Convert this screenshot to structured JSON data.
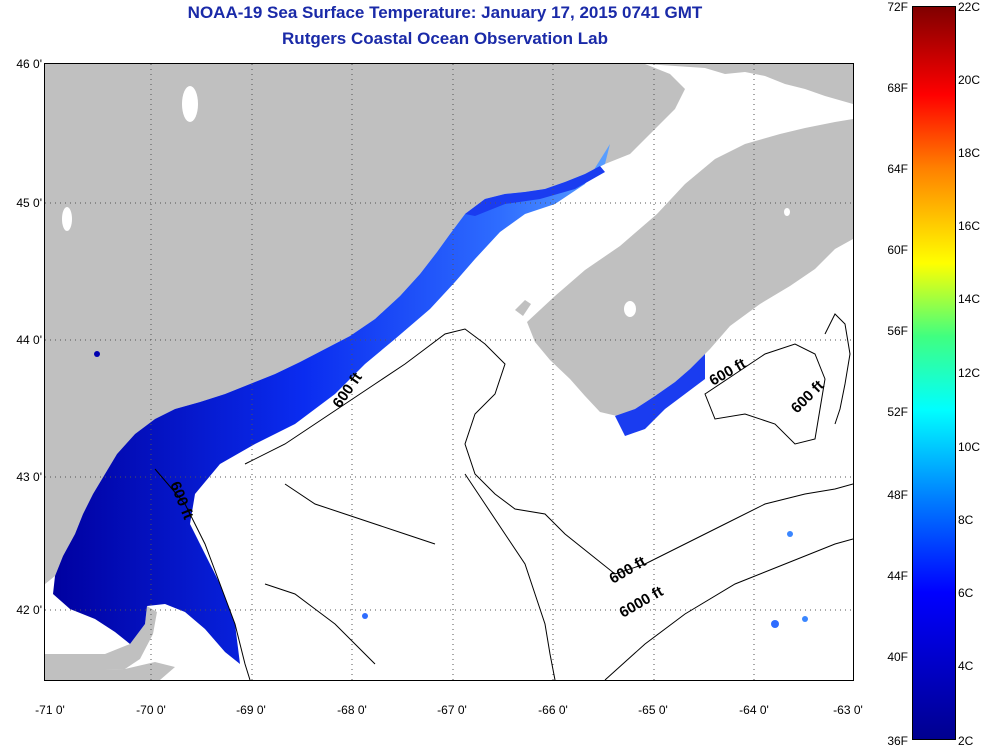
{
  "titles": {
    "line1": "NOAA-19 Sea Surface Temperature:  January 17, 2015 0741 GMT",
    "line2": "Rutgers Coastal Ocean Observation Lab"
  },
  "map": {
    "y_ticks": [
      "46 0'",
      "45 0'",
      "44 0'",
      "43 0'",
      "42 0'"
    ],
    "x_ticks": [
      "-71 0'",
      "-70 0'",
      "-69 0'",
      "-68 0'",
      "-67 0'",
      "-66 0'",
      "-65 0'",
      "-64 0'",
      "-63 0'"
    ],
    "contour_labels": [
      "600 ft",
      "600 ft",
      "600 ft",
      "600 ft",
      "600 ft",
      "6000 ft"
    ],
    "colors": {
      "land": "#c0c0c0",
      "ocean": "#ffffff",
      "title": "#1a2aa8"
    }
  },
  "colorbar": {
    "fahrenheit_labels": [
      "72F",
      "68F",
      "64F",
      "60F",
      "56F",
      "52F",
      "48F",
      "44F",
      "40F",
      "36F"
    ],
    "celsius_labels": [
      "22C",
      "20C",
      "18C",
      "16C",
      "14C",
      "12C",
      "10C",
      "8C",
      "6C",
      "4C",
      "2C"
    ]
  }
}
